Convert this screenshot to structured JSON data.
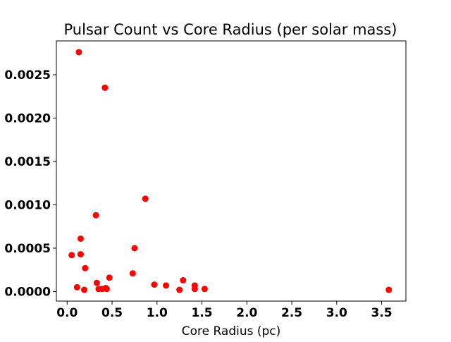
{
  "chart_data": {
    "type": "scatter",
    "title": "Pulsar Count vs Core Radius (per solar mass)",
    "xlabel": "Core Radius (pc)",
    "ylabel": "",
    "xlim": [
      -0.12,
      3.77
    ],
    "ylim": [
      -0.00011,
      0.00289
    ],
    "x_ticks": [
      0.0,
      0.5,
      1.0,
      1.5,
      2.0,
      2.5,
      3.0,
      3.5
    ],
    "x_tick_labels": [
      "0.0",
      "0.5",
      "1.0",
      "1.5",
      "2.0",
      "2.5",
      "3.0",
      "3.5"
    ],
    "y_ticks": [
      0.0,
      0.0005,
      0.001,
      0.0015,
      0.002,
      0.0025
    ],
    "y_tick_labels": [
      "0.0000",
      "0.0005",
      "0.0010",
      "0.0015",
      "0.0020",
      "0.0025"
    ],
    "grid": false,
    "legend": "none",
    "marker_color": "#ff0000",
    "series": [
      {
        "x": [
          0.13,
          0.42,
          0.87,
          0.32,
          0.15,
          0.05,
          0.15,
          0.75,
          0.2,
          0.73,
          0.47,
          0.33,
          0.11,
          0.19,
          0.35,
          0.39,
          0.44,
          0.43,
          0.97,
          1.1,
          1.25,
          1.29,
          1.42,
          1.42,
          1.53,
          3.58
        ],
        "y": [
          0.00276,
          0.00235,
          0.00107,
          0.00088,
          0.00061,
          0.00042,
          0.00043,
          0.0005,
          0.00027,
          0.00021,
          0.00016,
          0.0001,
          5e-05,
          2e-05,
          3e-05,
          3e-05,
          3e-05,
          4e-05,
          8e-05,
          7e-05,
          2e-05,
          0.00013,
          3e-05,
          7e-05,
          3e-05,
          2e-05
        ]
      }
    ]
  }
}
